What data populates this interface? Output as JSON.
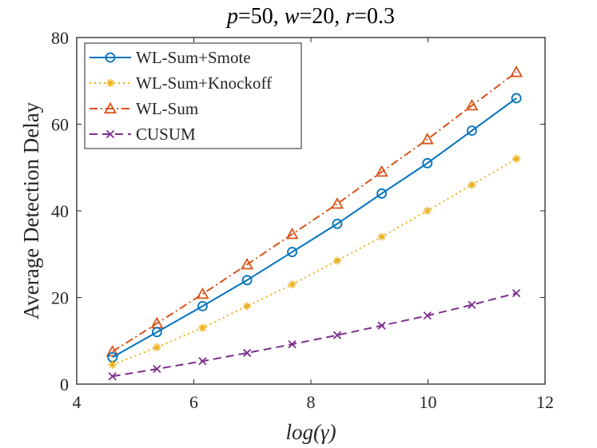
{
  "chart_data": {
    "type": "line",
    "title": {
      "parts": [
        {
          "text": "p",
          "italic": true
        },
        {
          "text": "=50, ",
          "italic": false
        },
        {
          "text": "w",
          "italic": true
        },
        {
          "text": "=20, ",
          "italic": false
        },
        {
          "text": "r",
          "italic": true
        },
        {
          "text": "=0.3",
          "italic": false
        }
      ]
    },
    "xlabel": "log(γ)",
    "ylabel": "Average Detection Delay",
    "xlim": [
      4,
      12
    ],
    "ylim": [
      0,
      80
    ],
    "xticks": [
      4,
      6,
      8,
      10,
      12
    ],
    "yticks": [
      0,
      20,
      40,
      60,
      80
    ],
    "grid": false,
    "legend_position": "top-left",
    "x": [
      4.61,
      5.37,
      6.15,
      6.91,
      7.68,
      8.45,
      9.21,
      9.99,
      10.75,
      11.51
    ],
    "series": [
      {
        "name": "WL-Sum+Smote",
        "color": "#0072BD",
        "line_style": "solid",
        "marker": "circle",
        "values": [
          6.2,
          12.0,
          18.0,
          24.0,
          30.5,
          37.0,
          44.0,
          51.0,
          58.5,
          66.0
        ]
      },
      {
        "name": "WL-Sum+Knockoff",
        "color": "#EDB120",
        "line_style": "dotted",
        "marker": "asterisk",
        "values": [
          4.5,
          8.5,
          13.0,
          18.0,
          23.0,
          28.5,
          34.0,
          40.0,
          46.0,
          52.0
        ]
      },
      {
        "name": "WL-Sum",
        "color": "#D95319",
        "line_style": "dash-dot",
        "marker": "triangle",
        "values": [
          7.5,
          14.0,
          20.8,
          27.6,
          34.6,
          41.6,
          49.0,
          56.5,
          64.3,
          72.0
        ]
      },
      {
        "name": "CUSUM",
        "color": "#7E2F8E",
        "line_style": "dashed",
        "marker": "x",
        "values": [
          1.8,
          3.5,
          5.3,
          7.2,
          9.2,
          11.3,
          13.5,
          15.8,
          18.3,
          21.0
        ]
      }
    ]
  }
}
